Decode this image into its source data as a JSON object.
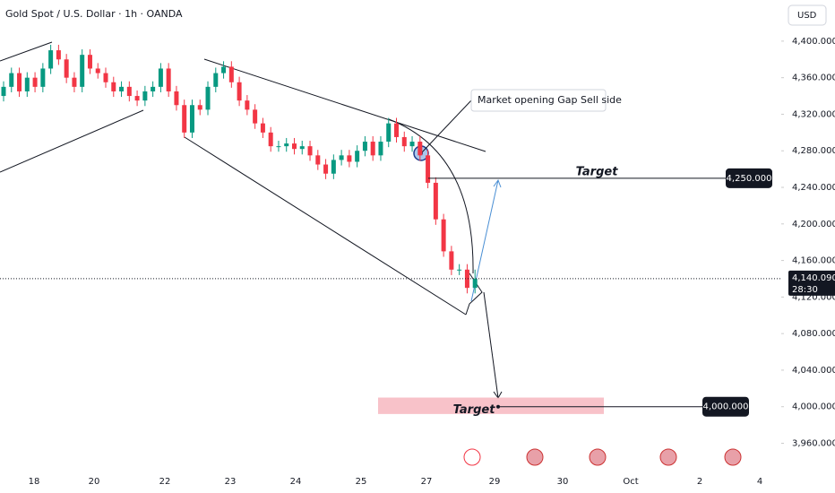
{
  "chart_data": {
    "type": "candlestick",
    "title": "Gold Spot / U.S. Dollar · 1h · OANDA",
    "currency": "USD",
    "x_labels": [
      "18",
      "20",
      "22",
      "23",
      "24",
      "25",
      "27",
      "29",
      "30",
      "Oct",
      "2",
      "4"
    ],
    "series": [
      {
        "name": "Gold Spot",
        "color_up": "#089981",
        "color_down": "#f23645",
        "open": [
          4340,
          4350,
          4365,
          4345,
          4360,
          4350,
          4370,
          4390,
          4380,
          4360,
          4350,
          4385,
          4370,
          4365,
          4355,
          4345,
          4350,
          4340,
          4335,
          4345,
          4350,
          4370,
          4345,
          4330,
          4300,
          4330,
          4325,
          4350,
          4365,
          4372,
          4355,
          4335,
          4325,
          4310,
          4300,
          4285,
          4285,
          4288,
          4282,
          4285,
          4275,
          4265,
          4255,
          4270,
          4275,
          4268,
          4280,
          4290,
          4275,
          4290,
          4310,
          4295,
          4285,
          4290,
          4275,
          4245,
          4205,
          4170,
          4150,
          4150,
          4130
        ],
        "high": [
          4356,
          4371,
          4371,
          4366,
          4366,
          4376,
          4396,
          4396,
          4386,
          4366,
          4391,
          4391,
          4376,
          4371,
          4361,
          4356,
          4356,
          4346,
          4351,
          4356,
          4376,
          4376,
          4351,
          4336,
          4336,
          4336,
          4356,
          4371,
          4378,
          4378,
          4361,
          4341,
          4331,
          4316,
          4306,
          4291,
          4294,
          4294,
          4291,
          4291,
          4281,
          4271,
          4276,
          4281,
          4281,
          4286,
          4296,
          4296,
          4296,
          4316,
          4316,
          4301,
          4296,
          4296,
          4281,
          4251,
          4211,
          4176,
          4156,
          4156,
          4150
        ],
        "low": [
          4334,
          4344,
          4339,
          4339,
          4344,
          4344,
          4364,
          4374,
          4354,
          4344,
          4344,
          4364,
          4359,
          4349,
          4339,
          4339,
          4334,
          4329,
          4329,
          4339,
          4344,
          4339,
          4324,
          4294,
          4294,
          4319,
          4319,
          4344,
          4359,
          4349,
          4329,
          4319,
          4304,
          4294,
          4279,
          4279,
          4279,
          4276,
          4276,
          4269,
          4259,
          4249,
          4249,
          4264,
          4262,
          4262,
          4274,
          4269,
          4269,
          4284,
          4289,
          4279,
          4279,
          4269,
          4239,
          4199,
          4164,
          4144,
          4144,
          4124,
          4124
        ],
        "close": [
          4350,
          4365,
          4345,
          4360,
          4350,
          4370,
          4390,
          4380,
          4360,
          4350,
          4385,
          4370,
          4365,
          4355,
          4345,
          4350,
          4340,
          4335,
          4345,
          4350,
          4370,
          4345,
          4330,
          4300,
          4330,
          4325,
          4350,
          4365,
          4372,
          4355,
          4335,
          4325,
          4310,
          4300,
          4285,
          4285,
          4288,
          4282,
          4285,
          4275,
          4265,
          4255,
          4270,
          4275,
          4268,
          4280,
          4290,
          4275,
          4290,
          4310,
          4295,
          4285,
          4290,
          4275,
          4245,
          4205,
          4170,
          4150,
          4150,
          4130,
          4140.09
        ]
      }
    ],
    "ylim": [
      3935,
      4445
    ],
    "yticks": [
      {
        "value": 4400,
        "label": "4,400.000"
      },
      {
        "value": 4360,
        "label": "4,360.000"
      },
      {
        "value": 4320,
        "label": "4,320.000"
      },
      {
        "value": 4280,
        "label": "4,280.000"
      },
      {
        "value": 4240,
        "label": "4,240.000"
      },
      {
        "value": 4200,
        "label": "4,200.000"
      },
      {
        "value": 4160,
        "label": "4,160.000"
      },
      {
        "value": 4120,
        "label": "4,120.000"
      },
      {
        "value": 4080,
        "label": "4,080.000"
      },
      {
        "value": 4040,
        "label": "4,040.000"
      },
      {
        "value": 4000,
        "label": "4,000.000"
      },
      {
        "value": 3960,
        "label": "3,960.000"
      }
    ],
    "last_price": {
      "value": 4140.09,
      "label": "4,140.090",
      "countdown": "28:30"
    },
    "targets": [
      {
        "text": "Target",
        "value": 4250,
        "label": "4,250.000"
      },
      {
        "text": "Target",
        "value": 4000,
        "label": "4,000.000"
      }
    ],
    "target_zone": [
      3992,
      4010
    ],
    "annotation": "Market opening Gap Sell side"
  }
}
